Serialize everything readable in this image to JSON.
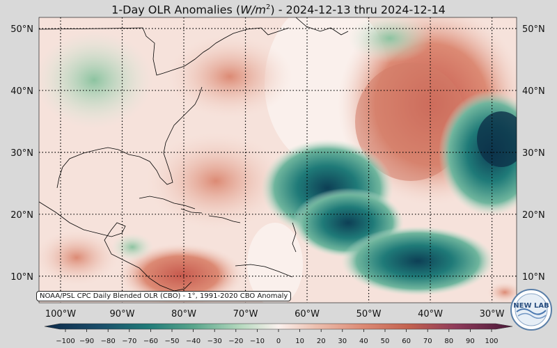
{
  "title": {
    "prefix": "1-Day OLR Anomalies (",
    "unit_var": "W/m",
    "unit_exp": "2",
    "suffix": ") - 2024-12-13 thru 2024-12-14"
  },
  "map": {
    "lat_labels": [
      "50°N",
      "40°N",
      "30°N",
      "20°N",
      "10°N"
    ],
    "lat_labels_right": [
      "50°N",
      "40°N",
      "30°N",
      "20°N",
      "10°N"
    ],
    "lon_labels": [
      "100°W",
      "90°W",
      "80°W",
      "70°W",
      "60°W",
      "50°W",
      "40°W",
      "30°W"
    ],
    "lat_values": [
      50,
      40,
      30,
      20,
      10
    ],
    "lon_values": [
      -100,
      -90,
      -80,
      -70,
      -60,
      -50,
      -40,
      -30
    ]
  },
  "source_note": "NOAA/PSL CPC Daily Blended OLR (CBO) - 1°, 1991-2020 CBO Anomaly",
  "colorbar": {
    "ticks": [
      "−100",
      "−90",
      "−80",
      "−70",
      "−60",
      "−50",
      "−40",
      "−30",
      "−20",
      "−10",
      "0",
      "10",
      "20",
      "30",
      "40",
      "50",
      "60",
      "70",
      "80",
      "90",
      "100"
    ],
    "colors": {
      "neg_extreme": "#0d2a4a",
      "neg_strong": "#0f6b6b",
      "neg_mid": "#3a9a88",
      "neg_light": "#9fcfae",
      "neutral": "#fbf1ee",
      "pos_light": "#ecbfaf",
      "pos_mid": "#dc8a74",
      "pos_strong": "#c75a4e",
      "pos_extreme": "#4a1838"
    }
  },
  "logo": {
    "text": "NEW LAB"
  }
}
